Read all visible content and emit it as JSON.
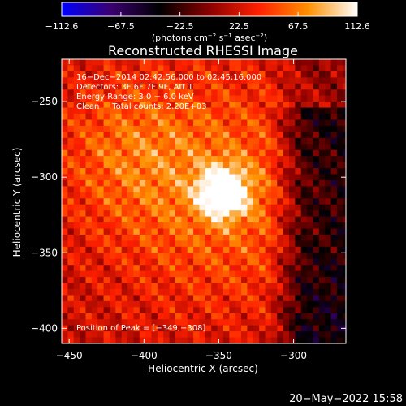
{
  "chart_data": {
    "type": "heatmap",
    "title": "Reconstructed RHESSI Image",
    "xlabel": "Heliocentric X (arcsec)",
    "ylabel": "Heliocentric Y (arcsec)",
    "xlim": [
      -455,
      -265
    ],
    "ylim": [
      -410,
      -222
    ],
    "xticks": [
      -450,
      -400,
      -350,
      -300
    ],
    "yticks": [
      -250,
      -300,
      -350,
      -400
    ],
    "xtick_labels": [
      "−450",
      "−400",
      "−350",
      "−300"
    ],
    "ytick_labels": [
      "−250",
      "−300",
      "−350",
      "−400"
    ],
    "colorbar": {
      "min": -112.6,
      "max": 112.6,
      "ticks": [
        -112.6,
        -67.5,
        -22.5,
        22.5,
        67.5,
        112.6
      ],
      "tick_labels": [
        "−112.6",
        "−67.5",
        "−22.5",
        "22.5",
        "67.5",
        "112.6"
      ],
      "unit_parts": [
        "(photons cm",
        "−2",
        " s",
        "−1",
        " asec",
        "−2",
        ")"
      ],
      "colors": [
        "#0000ff",
        "#3a0070",
        "#000000",
        "#8a0000",
        "#ff2000",
        "#ff9000",
        "#ffffff"
      ]
    },
    "annotations": [
      "16−Dec−2014 02:42:56.000 to 02:45:16.000",
      "Detectors: 3F 6F 7F 9F, Att 1",
      "Energy Range: 3.0 − 6.0 keV",
      "Clean     Total counts: 2.20E+03"
    ],
    "peak_label": "Position of Peak = [−349,−308]",
    "peak": [
      -349,
      -308
    ],
    "peak_value": 112.6,
    "grid": false
  },
  "footer": {
    "date": "20−May−2022 15:58"
  }
}
